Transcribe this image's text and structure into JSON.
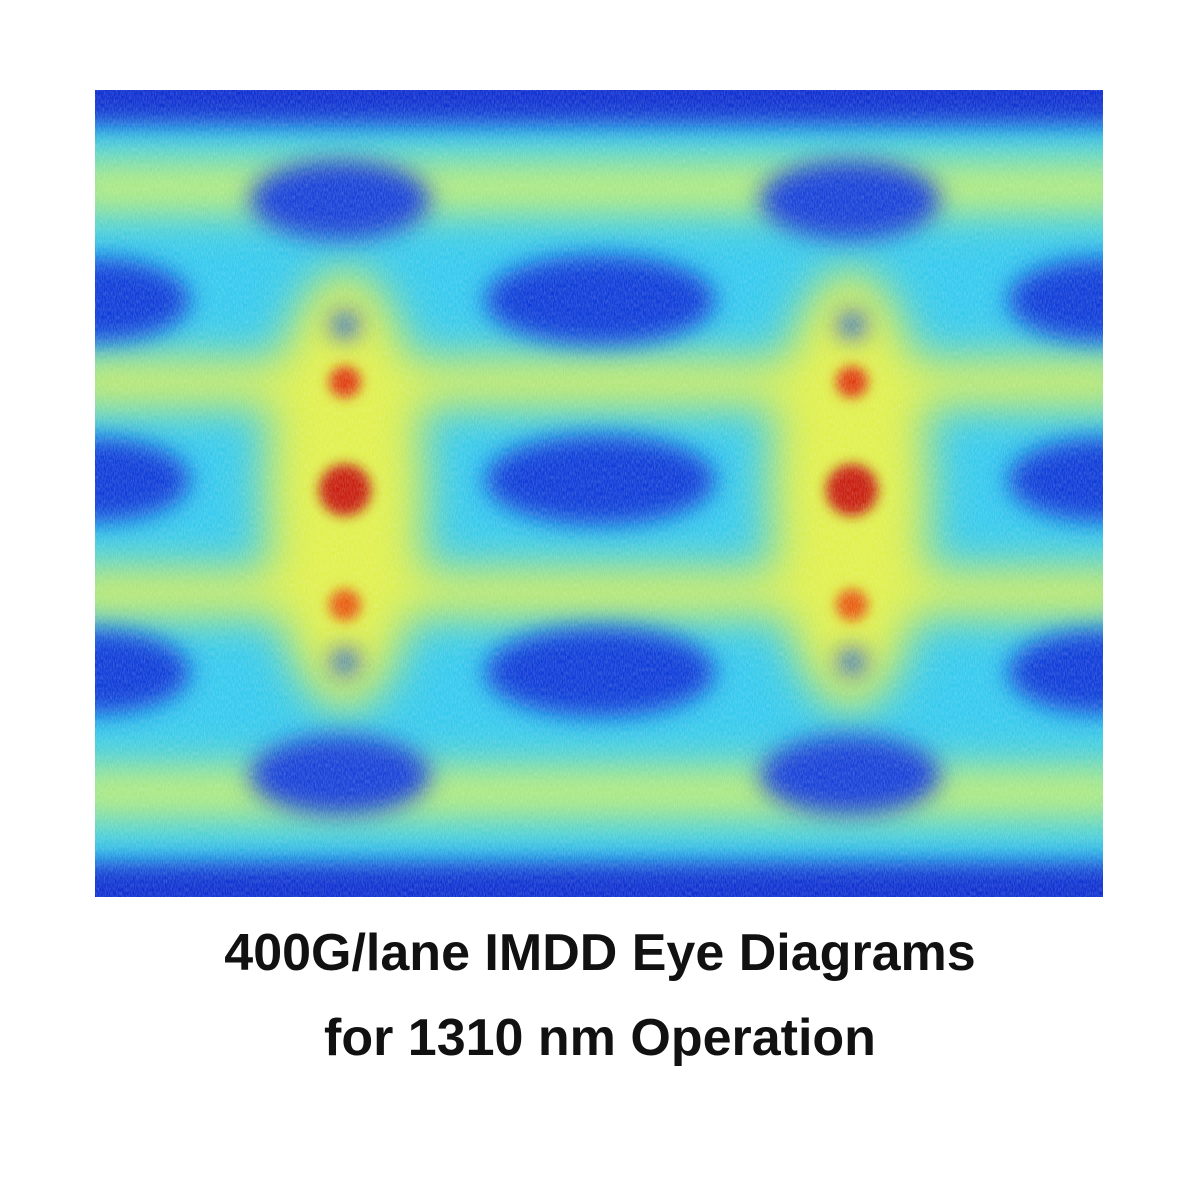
{
  "caption": {
    "lines": [
      "400G/lane IMDD Eye Diagrams",
      "for 1310 nm Operation"
    ]
  }
}
